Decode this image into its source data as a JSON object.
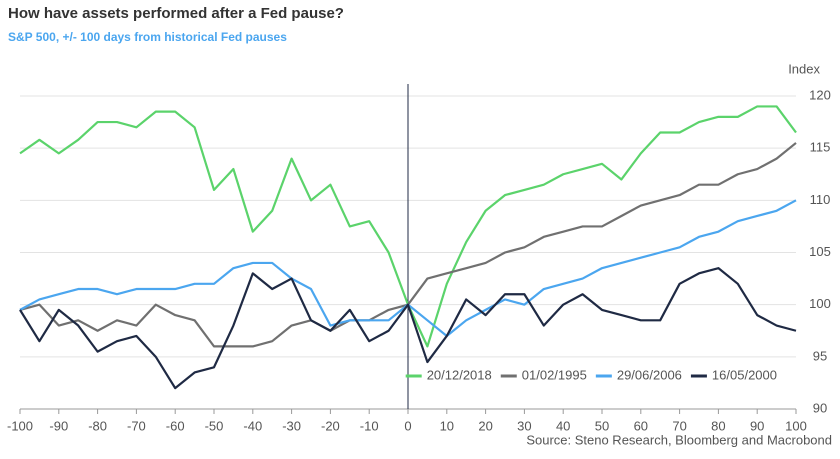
{
  "chart_data": {
    "type": "line",
    "title": "How have assets performed after a Fed pause?",
    "subtitle": "S&P 500, +/- 100 days from historical Fed pauses",
    "y_label": "Index",
    "source": "Source: Steno Research, Bloomberg and Macrobond",
    "x": [
      -100,
      -95,
      -90,
      -85,
      -80,
      -75,
      -70,
      -65,
      -60,
      -55,
      -50,
      -45,
      -40,
      -35,
      -30,
      -25,
      -20,
      -15,
      -10,
      -5,
      0,
      5,
      10,
      15,
      20,
      25,
      30,
      35,
      40,
      45,
      50,
      55,
      60,
      65,
      70,
      75,
      80,
      85,
      90,
      95,
      100
    ],
    "series": [
      {
        "name": "20/12/2018",
        "color": "#5bd36b",
        "values": [
          114.5,
          115.8,
          114.5,
          115.8,
          117.5,
          117.5,
          117,
          118.5,
          118.5,
          117,
          111,
          113,
          107,
          109,
          114,
          110,
          111.5,
          107.5,
          108,
          105,
          100,
          96,
          102,
          106,
          109,
          110.5,
          111,
          111.5,
          112.5,
          113,
          113.5,
          112,
          114.5,
          116.5,
          116.5,
          117.5,
          118,
          118,
          119,
          119,
          116.5
        ]
      },
      {
        "name": "01/02/1995",
        "color": "#707070",
        "values": [
          99.5,
          100,
          98,
          98.5,
          97.5,
          98.5,
          98,
          100,
          99,
          98.5,
          96,
          96,
          96,
          96.5,
          98,
          98.5,
          97.5,
          98.5,
          98.5,
          99.5,
          100,
          102.5,
          103,
          103.5,
          104,
          105,
          105.5,
          106.5,
          107,
          107.5,
          107.5,
          108.5,
          109.5,
          110,
          110.5,
          111.5,
          111.5,
          112.5,
          113,
          114,
          115.5
        ]
      },
      {
        "name": "29/06/2006",
        "color": "#4ba6ef",
        "values": [
          99.5,
          100.5,
          101,
          101.5,
          101.5,
          101,
          101.5,
          101.5,
          101.5,
          102,
          102,
          103.5,
          104,
          104,
          102.5,
          101.5,
          98,
          98.5,
          98.5,
          98.5,
          100,
          98.5,
          97,
          98.5,
          99.5,
          100.5,
          100,
          101.5,
          102,
          102.5,
          103.5,
          104,
          104.5,
          105,
          105.5,
          106.5,
          107,
          108,
          108.5,
          109,
          110
        ]
      },
      {
        "name": "16/05/2000",
        "color": "#1f2a44",
        "values": [
          99.5,
          96.5,
          99.5,
          98,
          95.5,
          96.5,
          97,
          95,
          92,
          93.5,
          94,
          98,
          103,
          101.5,
          102.5,
          98.5,
          97.5,
          99.5,
          96.5,
          97.5,
          100,
          94.5,
          97,
          100.5,
          99,
          101,
          101,
          98,
          100,
          101,
          99.5,
          99,
          98.5,
          98.5,
          102,
          103,
          103.5,
          102,
          99,
          98,
          97.5
        ]
      }
    ],
    "xlim": [
      -100,
      100
    ],
    "xticks": [
      -100,
      -90,
      -80,
      -70,
      -60,
      -50,
      -40,
      -30,
      -20,
      -10,
      0,
      10,
      20,
      30,
      40,
      50,
      60,
      70,
      80,
      90,
      100
    ],
    "ylim": [
      90,
      120
    ],
    "yticks": [
      90,
      95,
      100,
      105,
      110,
      115,
      120
    ],
    "vline": 0,
    "grid": true,
    "legend": "lower right"
  }
}
